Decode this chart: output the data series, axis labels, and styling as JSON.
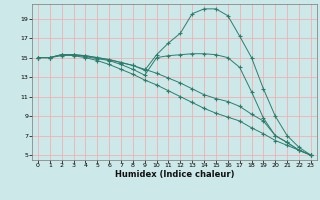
{
  "xlabel": "Humidex (Indice chaleur)",
  "bg_color": "#cde8e8",
  "grid_color": "#f0b0b0",
  "line_color": "#2d7d6e",
  "xlim": [
    -0.5,
    23.5
  ],
  "ylim": [
    4.5,
    20.5
  ],
  "xticks": [
    0,
    1,
    2,
    3,
    4,
    5,
    6,
    7,
    8,
    9,
    10,
    11,
    12,
    13,
    14,
    15,
    16,
    17,
    18,
    19,
    20,
    21,
    22,
    23
  ],
  "yticks": [
    5,
    7,
    9,
    11,
    13,
    15,
    17,
    19
  ],
  "line1_x": [
    0,
    1,
    2,
    3,
    4,
    5,
    6,
    7,
    8,
    9,
    10,
    11,
    12,
    13,
    14,
    15,
    16,
    17,
    18,
    19,
    20,
    21,
    22,
    23
  ],
  "line1_y": [
    15,
    15,
    15.2,
    15.3,
    15.2,
    15.0,
    14.8,
    14.5,
    14.2,
    13.8,
    13.4,
    12.9,
    12.4,
    11.8,
    11.2,
    10.8,
    10.5,
    10.0,
    9.2,
    8.5,
    7.0,
    6.3,
    5.5,
    5.0
  ],
  "line2_x": [
    0,
    1,
    2,
    3,
    4,
    5,
    6,
    7,
    8,
    9,
    10,
    11,
    12,
    13,
    14,
    15,
    16,
    17,
    18,
    19,
    20,
    21,
    22,
    23
  ],
  "line2_y": [
    15,
    15,
    15.3,
    15.2,
    15.0,
    14.7,
    14.3,
    13.8,
    13.3,
    12.7,
    12.2,
    11.6,
    11.0,
    10.4,
    9.8,
    9.3,
    8.9,
    8.5,
    7.8,
    7.2,
    6.5,
    6.0,
    5.5,
    5.0
  ],
  "line3_x": [
    0,
    1,
    2,
    3,
    4,
    5,
    6,
    7,
    8,
    9,
    10,
    11,
    12,
    13,
    14,
    15,
    16,
    17,
    18,
    19,
    20,
    21,
    22,
    23
  ],
  "line3_y": [
    15,
    15,
    15.3,
    15.3,
    15.2,
    15.0,
    14.8,
    14.5,
    14.2,
    13.7,
    15.3,
    16.5,
    17.5,
    19.5,
    20.0,
    20.0,
    19.3,
    17.2,
    15.0,
    11.8,
    9.0,
    7.0,
    5.8,
    5.0
  ],
  "line4_x": [
    0,
    1,
    2,
    3,
    4,
    5,
    6,
    7,
    8,
    9,
    10,
    11,
    12,
    13,
    14,
    15,
    16,
    17,
    18,
    19,
    20,
    21,
    22,
    23
  ],
  "line4_y": [
    15,
    15,
    15.3,
    15.3,
    15.1,
    14.9,
    14.7,
    14.3,
    13.8,
    13.2,
    15.0,
    15.2,
    15.3,
    15.4,
    15.4,
    15.3,
    15.0,
    14.0,
    11.5,
    8.8,
    7.0,
    6.3,
    5.5,
    5.0
  ]
}
